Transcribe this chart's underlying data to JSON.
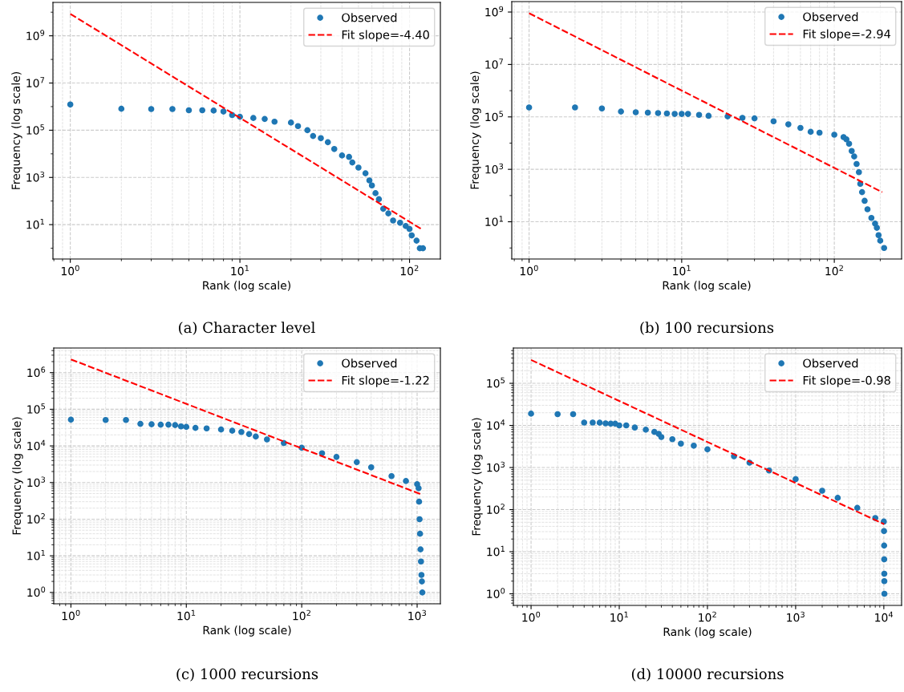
{
  "chart_data": [
    {
      "type": "scatter",
      "xlabel": "Rank (log scale)",
      "ylabel": "Frequency (log scale)",
      "annotations": [
        "(a) Character level"
      ],
      "log": "xy",
      "grid": true,
      "legend": "top right",
      "xlim": [
        0.79,
        152
      ],
      "ylim": [
        0.35,
        26000000000.0
      ],
      "xticks": [
        {
          "value": 1,
          "label": "10$^{0}$"
        },
        {
          "value": 10,
          "label": "10$^{1}$"
        },
        {
          "value": 100,
          "label": "10$^{2}$"
        }
      ],
      "yticks": [
        {
          "value": 10,
          "label": "10$^{1}$"
        },
        {
          "value": 1000,
          "label": "10$^{3}$"
        },
        {
          "value": 100000,
          "label": "10$^{5}$"
        },
        {
          "value": 10000000,
          "label": "10$^{7}$"
        },
        {
          "value": 1000000000,
          "label": "10$^{9}$"
        }
      ],
      "series": [
        {
          "name": "Observed",
          "color": "#1f77b4",
          "marker": "circle",
          "x": [
            1,
            2,
            3,
            4,
            5,
            6,
            7,
            8,
            9,
            10,
            12,
            14,
            16,
            20,
            22,
            25,
            27,
            30,
            33,
            36,
            40,
            44,
            46,
            50,
            55,
            58,
            60,
            63,
            66,
            70,
            75,
            80,
            88,
            95,
            100,
            103,
            110,
            115,
            120
          ],
          "values": [
            1230000,
            810000,
            790000,
            790000,
            700000,
            700000,
            680000,
            620000,
            440000,
            370000,
            330000,
            300000,
            230000,
            210000,
            150000,
            100000,
            57000,
            46000,
            31000,
            16000,
            8500,
            7400,
            4300,
            2600,
            1500,
            750,
            460,
            215,
            120,
            47,
            30,
            15,
            12,
            8.7,
            6.6,
            3.5,
            2.1,
            1,
            1
          ]
        },
        {
          "name": "Fit slope=-4.40",
          "type": "line",
          "color": "#ff0000",
          "marker": "none",
          "line_style": "dashed",
          "x": [
            1,
            117
          ],
          "values": [
            8500000000,
            6.6
          ]
        }
      ]
    },
    {
      "type": "scatter",
      "xlabel": "Rank (log scale)",
      "ylabel": "Frequency (log scale)",
      "annotations": [
        "(b) 100 recursions"
      ],
      "log": "xy",
      "grid": true,
      "legend": "top right",
      "xlim": [
        0.77,
        276
      ],
      "ylim": [
        0.38,
        2500000000.0
      ],
      "xticks": [
        {
          "value": 1,
          "label": "10$^{0}$"
        },
        {
          "value": 10,
          "label": "10$^{1}$"
        },
        {
          "value": 100,
          "label": "10$^{2}$"
        }
      ],
      "yticks": [
        {
          "value": 10,
          "label": "10$^{1}$"
        },
        {
          "value": 1000,
          "label": "10$^{3}$"
        },
        {
          "value": 100000,
          "label": "10$^{5}$"
        },
        {
          "value": 10000000,
          "label": "10$^{7}$"
        },
        {
          "value": 1000000000,
          "label": "10$^{9}$"
        }
      ],
      "series": [
        {
          "name": "Observed",
          "color": "#1f77b4",
          "marker": "circle",
          "x": [
            1,
            2,
            3,
            4,
            5,
            6,
            7,
            8,
            9,
            10,
            11,
            13,
            15,
            20,
            25,
            30,
            40,
            50,
            60,
            70,
            80,
            100,
            115,
            120,
            125,
            130,
            135,
            140,
            145,
            148,
            152,
            158,
            165,
            175,
            185,
            190,
            195,
            200,
            212
          ],
          "values": [
            230000,
            230000,
            210000,
            160000,
            150000,
            145000,
            140000,
            135000,
            130000,
            130000,
            130000,
            120000,
            110000,
            105000,
            92000,
            88000,
            68000,
            52000,
            38000,
            27000,
            25000,
            21000,
            17000,
            14000,
            9500,
            5000,
            3100,
            1600,
            780,
            280,
            135,
            63,
            30,
            14,
            8.5,
            5.9,
            3.1,
            1.9,
            1
          ]
        },
        {
          "name": "Fit slope=-2.94",
          "type": "line",
          "color": "#ff0000",
          "marker": "none",
          "line_style": "dashed",
          "x": [
            1,
            206
          ],
          "values": [
            900000000,
            135
          ]
        }
      ]
    },
    {
      "type": "scatter",
      "xlabel": "Rank (log scale)",
      "ylabel": "Frequency (log scale)",
      "annotations": [
        "(c) 1000 recursions"
      ],
      "log": "xy",
      "grid": true,
      "legend": "top right",
      "xlim": [
        0.71,
        1590
      ],
      "ylim": [
        0.49,
        4700000.0
      ],
      "xticks": [
        {
          "value": 1,
          "label": "10$^{0}$"
        },
        {
          "value": 10,
          "label": "10$^{1}$"
        },
        {
          "value": 100,
          "label": "10$^{2}$"
        },
        {
          "value": 1000,
          "label": "10$^{3}$"
        }
      ],
      "yticks": [
        {
          "value": 1,
          "label": "10$^{0}$"
        },
        {
          "value": 10,
          "label": "10$^{1}$"
        },
        {
          "value": 100,
          "label": "10$^{2}$"
        },
        {
          "value": 1000,
          "label": "10$^{3}$"
        },
        {
          "value": 10000,
          "label": "10$^{4}$"
        },
        {
          "value": 100000,
          "label": "10$^{5}$"
        },
        {
          "value": 1000000,
          "label": "10$^{6}$"
        }
      ],
      "series": [
        {
          "name": "Observed",
          "color": "#1f77b4",
          "marker": "circle",
          "x": [
            1,
            2,
            3,
            4,
            5,
            6,
            7,
            8,
            9,
            10,
            12,
            15,
            20,
            25,
            30,
            35,
            40,
            50,
            70,
            100,
            150,
            200,
            300,
            400,
            600,
            800,
            1000,
            1030,
            1040,
            1050,
            1060,
            1070,
            1080,
            1090,
            1100,
            1110
          ],
          "values": [
            52000,
            51000,
            51000,
            40000,
            39000,
            38000,
            38000,
            37000,
            34000,
            33000,
            31000,
            30000,
            28000,
            26000,
            24000,
            21000,
            18000,
            15000,
            12000,
            8900,
            6300,
            5000,
            3600,
            2600,
            1500,
            1100,
            900,
            700,
            300,
            100,
            40,
            15,
            7,
            3,
            2,
            1
          ]
        },
        {
          "name": "Fit slope=-1.22",
          "type": "line",
          "color": "#ff0000",
          "marker": "none",
          "line_style": "dashed",
          "x": [
            1,
            1114
          ],
          "values": [
            2300000,
            460
          ]
        }
      ]
    },
    {
      "type": "scatter",
      "xlabel": "Rank (log scale)",
      "ylabel": "Frequency (log scale)",
      "annotations": [
        "(d) 10000 recursions"
      ],
      "log": "xy",
      "grid": true,
      "legend": "top right",
      "xlim": [
        0.63,
        15900
      ],
      "ylim": [
        0.53,
        690000
      ],
      "xticks": [
        {
          "value": 1,
          "label": "10$^{0}$"
        },
        {
          "value": 10,
          "label": "10$^{1}$"
        },
        {
          "value": 100,
          "label": "10$^{2}$"
        },
        {
          "value": 1000,
          "label": "10$^{3}$"
        },
        {
          "value": 10000,
          "label": "10$^{4}$"
        }
      ],
      "yticks": [
        {
          "value": 1,
          "label": "10$^{0}$"
        },
        {
          "value": 10,
          "label": "10$^{1}$"
        },
        {
          "value": 100,
          "label": "10$^{2}$"
        },
        {
          "value": 1000,
          "label": "10$^{3}$"
        },
        {
          "value": 10000,
          "label": "10$^{4}$"
        },
        {
          "value": 100000,
          "label": "10$^{5}$"
        }
      ],
      "series": [
        {
          "name": "Observed",
          "color": "#1f77b4",
          "marker": "circle",
          "x": [
            1,
            2,
            3,
            4,
            5,
            6,
            7,
            8,
            9,
            10,
            12,
            15,
            20,
            25,
            28,
            30,
            40,
            50,
            70,
            100,
            200,
            300,
            500,
            1000,
            2000,
            3000,
            5000,
            8000,
            10000,
            10050,
            10080,
            10100,
            10120,
            10130,
            10150
          ],
          "values": [
            19000,
            18500,
            18500,
            11700,
            11700,
            11600,
            11200,
            11000,
            11000,
            10000,
            10000,
            8900,
            7900,
            7000,
            6300,
            5300,
            4700,
            3700,
            3300,
            2700,
            1850,
            1300,
            850,
            530,
            280,
            190,
            110,
            63,
            52,
            31,
            14,
            6.6,
            3,
            2,
            1
          ]
        },
        {
          "name": "Fit slope=-0.98",
          "type": "line",
          "color": "#ff0000",
          "marker": "none",
          "line_style": "dashed",
          "x": [
            1,
            10100
          ],
          "values": [
            360000,
            45
          ]
        }
      ]
    }
  ]
}
